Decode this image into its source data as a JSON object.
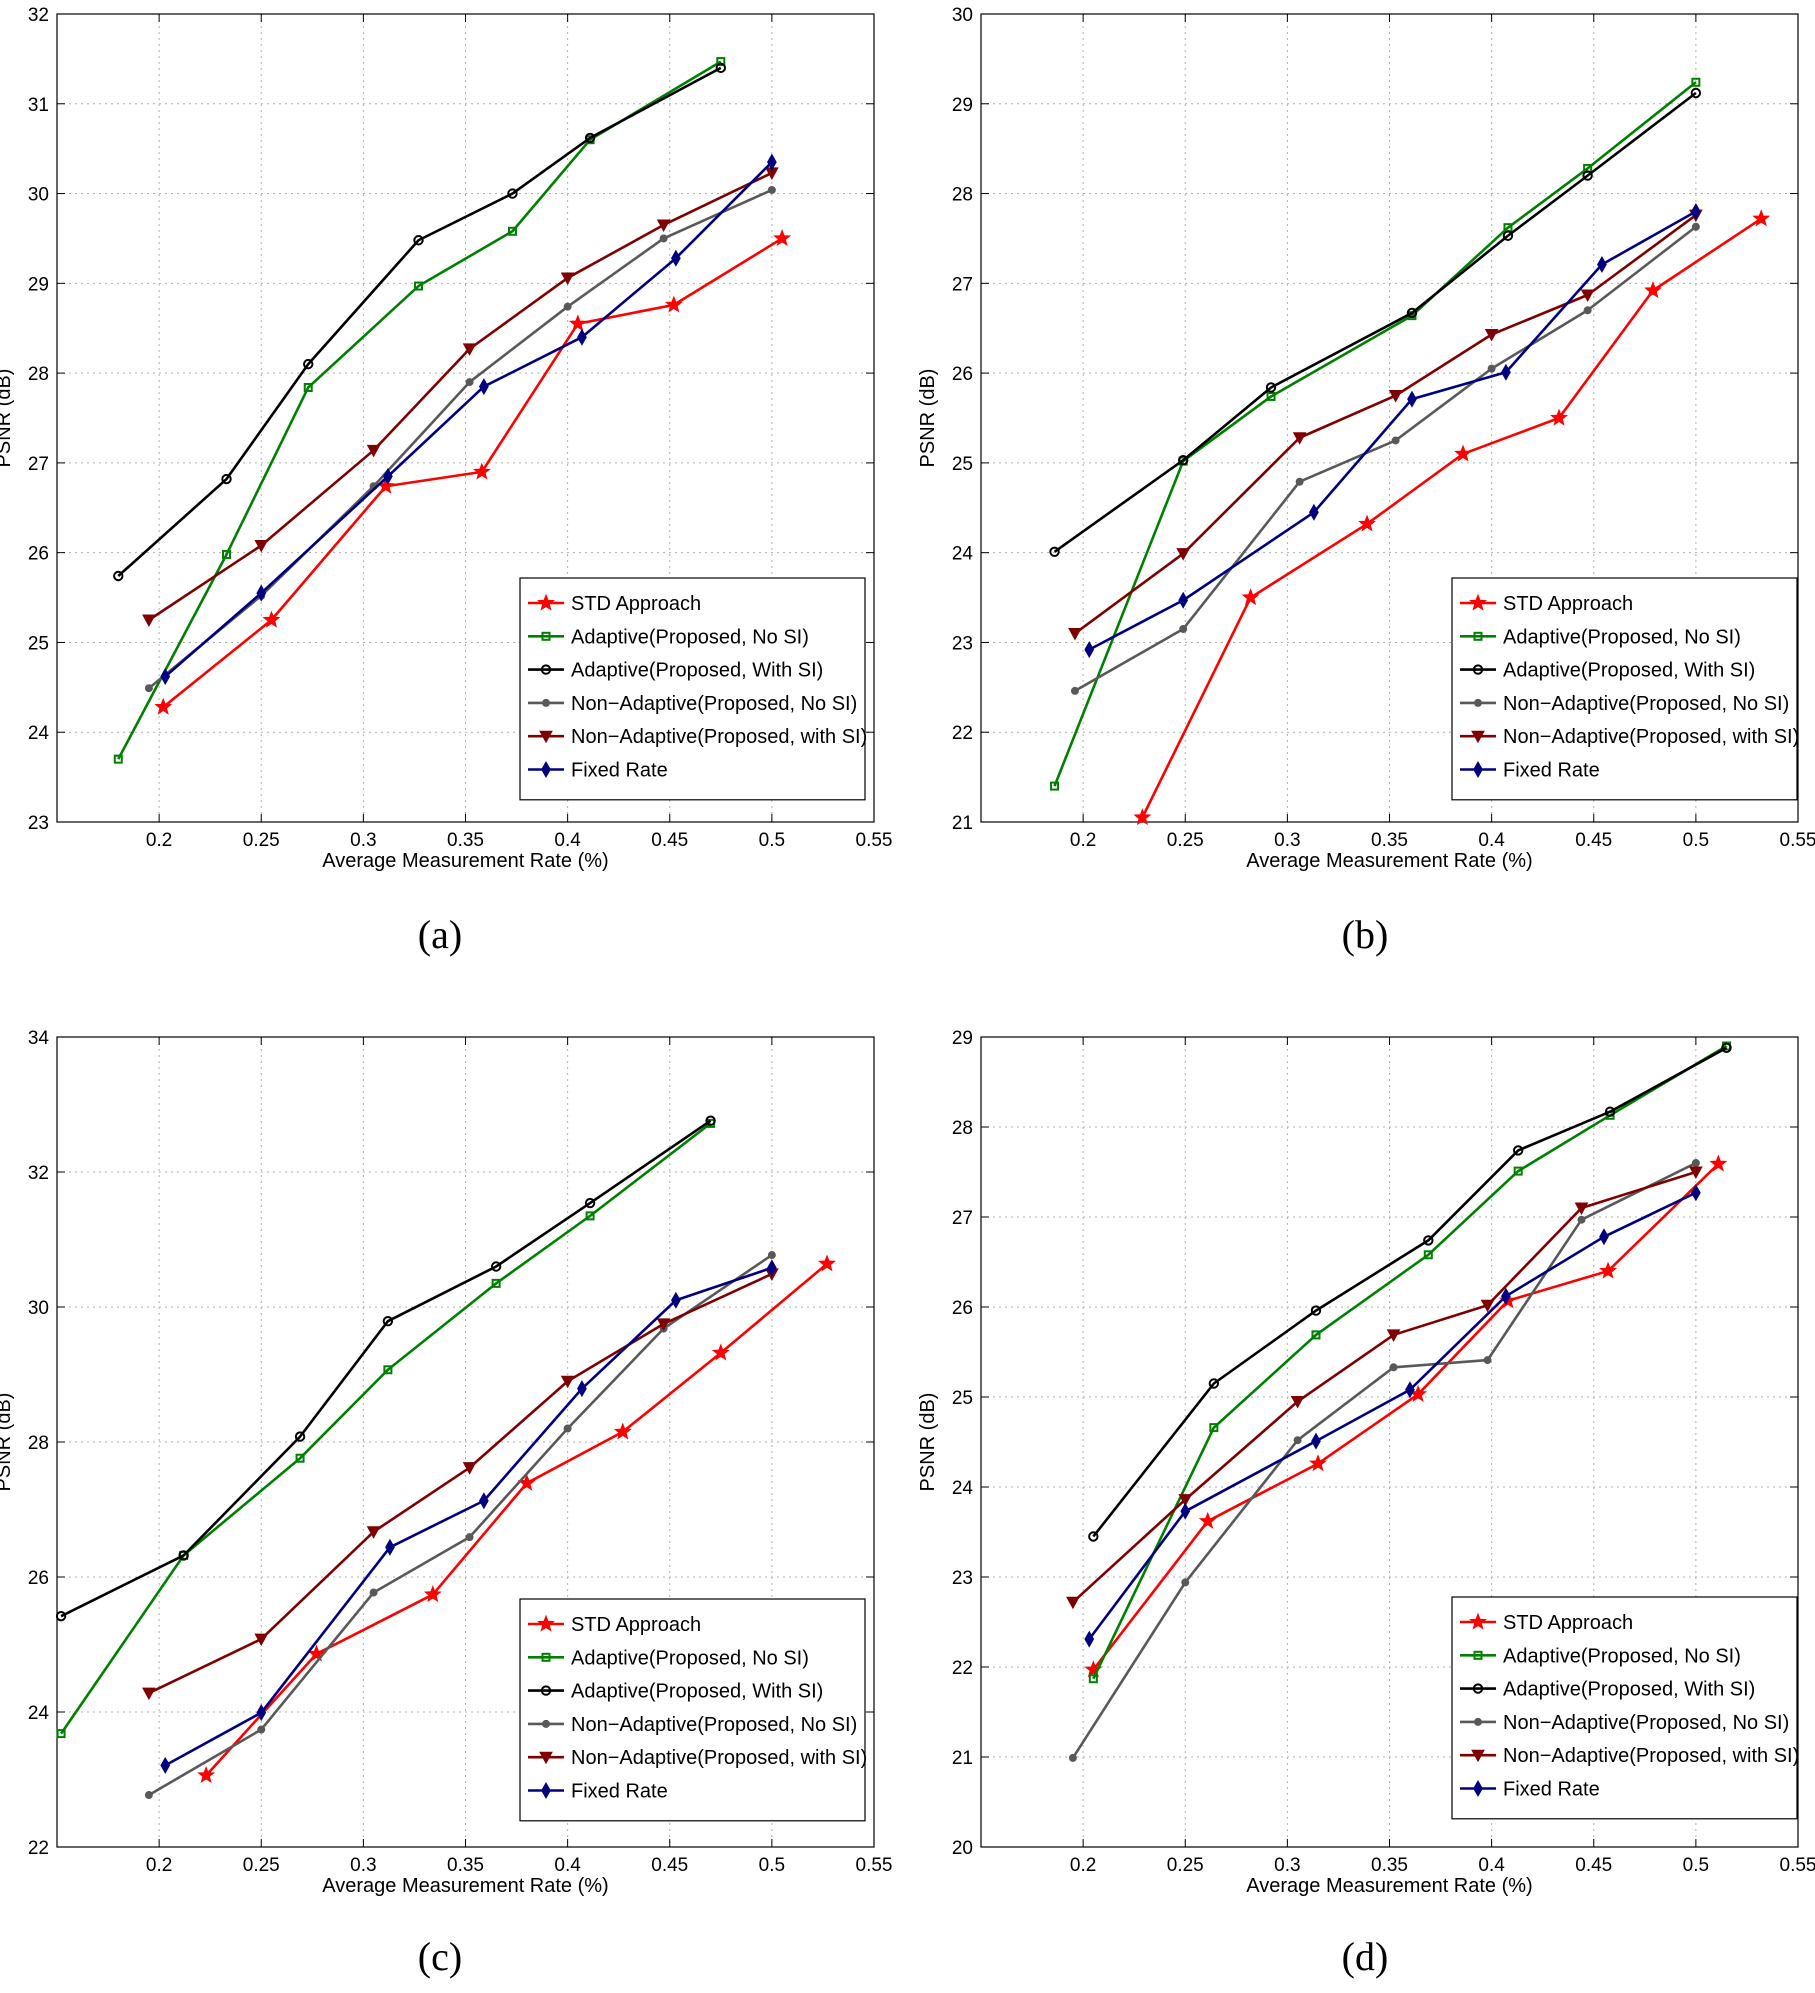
{
  "series_styles": {
    "std": {
      "color": "#ff0000",
      "marker": "star"
    },
    "anosi": {
      "color": "#008000",
      "marker": "square"
    },
    "asi": {
      "color": "#000000",
      "marker": "circle"
    },
    "nnosi": {
      "color": "#595959",
      "marker": "dot"
    },
    "nsi": {
      "color": "#7f0000",
      "marker": "triangle"
    },
    "fixed": {
      "color": "#000080",
      "marker": "diamond"
    }
  },
  "chart_data": [
    {
      "type": "line",
      "panel_label": "(a)",
      "xlabel": "Average Measurement Rate (%)",
      "ylabel": "PSNR (dB)",
      "xlim": [
        0.15,
        0.55
      ],
      "ylim": [
        23,
        32
      ],
      "xticks": [
        "0.2",
        "0.25",
        "0.3",
        "0.35",
        "0.4",
        "0.45",
        "0.5",
        "0.55"
      ],
      "yticks": [
        "23",
        "24",
        "25",
        "26",
        "27",
        "28",
        "29",
        "30",
        "31",
        "32"
      ],
      "grid": true,
      "legend_position": "lower-right",
      "series": [
        {
          "key": "std",
          "name": "STD Approach",
          "x": [
            0.202,
            0.255,
            0.311,
            0.358,
            0.405,
            0.452,
            0.505
          ],
          "y": [
            24.28,
            25.25,
            26.74,
            26.9,
            28.55,
            28.76,
            29.5
          ]
        },
        {
          "key": "anosi",
          "name": "Adaptive(Proposed, No SI)",
          "x": [
            0.18,
            0.233,
            0.273,
            0.327,
            0.373,
            0.411,
            0.475
          ],
          "y": [
            23.7,
            25.98,
            27.84,
            28.97,
            29.58,
            30.6,
            31.47
          ]
        },
        {
          "key": "asi",
          "name": "Adaptive(Proposed, With SI)",
          "x": [
            0.18,
            0.233,
            0.273,
            0.327,
            0.373,
            0.411,
            0.475
          ],
          "y": [
            25.74,
            26.82,
            28.1,
            29.48,
            30.0,
            30.62,
            31.4
          ]
        },
        {
          "key": "nnosi",
          "name": "Non−Adaptive(Proposed, No SI)",
          "x": [
            0.195,
            0.25,
            0.305,
            0.352,
            0.4,
            0.447,
            0.5
          ],
          "y": [
            24.49,
            25.52,
            26.74,
            27.9,
            28.74,
            29.5,
            30.04
          ]
        },
        {
          "key": "nsi",
          "name": "Non−Adaptive(Proposed, with SI)",
          "x": [
            0.195,
            0.25,
            0.305,
            0.352,
            0.4,
            0.447,
            0.5
          ],
          "y": [
            25.25,
            26.08,
            27.14,
            28.27,
            29.06,
            29.65,
            30.23
          ]
        },
        {
          "key": "fixed",
          "name": "Fixed Rate",
          "x": [
            0.203,
            0.25,
            0.312,
            0.359,
            0.407,
            0.453,
            0.5
          ],
          "y": [
            24.62,
            25.55,
            26.85,
            27.85,
            28.4,
            29.28,
            30.35
          ]
        }
      ]
    },
    {
      "type": "line",
      "panel_label": "(b)",
      "xlabel": "Average Measurement Rate (%)",
      "ylabel": "PSNR (dB)",
      "xlim": [
        0.15,
        0.55
      ],
      "ylim": [
        21,
        30
      ],
      "xticks": [
        "0.2",
        "0.25",
        "0.3",
        "0.35",
        "0.4",
        "0.45",
        "0.5",
        "0.55"
      ],
      "yticks": [
        "21",
        "22",
        "23",
        "24",
        "25",
        "26",
        "27",
        "28",
        "29",
        "30"
      ],
      "grid": true,
      "legend_position": "lower-right",
      "series": [
        {
          "key": "std",
          "name": "STD Approach",
          "x": [
            0.229,
            0.282,
            0.339,
            0.386,
            0.433,
            0.479,
            0.532
          ],
          "y": [
            21.05,
            23.5,
            24.32,
            25.1,
            25.5,
            26.92,
            27.72
          ]
        },
        {
          "key": "anosi",
          "name": "Adaptive(Proposed, No SI)",
          "x": [
            0.186,
            0.249,
            0.292,
            0.361,
            0.408,
            0.447,
            0.5
          ],
          "y": [
            21.4,
            25.02,
            25.74,
            26.64,
            27.62,
            28.28,
            29.24
          ]
        },
        {
          "key": "asi",
          "name": "Adaptive(Proposed, With SI)",
          "x": [
            0.186,
            0.249,
            0.292,
            0.361,
            0.408,
            0.447,
            0.5
          ],
          "y": [
            24.01,
            25.03,
            25.84,
            26.67,
            27.53,
            28.2,
            29.12
          ]
        },
        {
          "key": "nnosi",
          "name": "Non−Adaptive(Proposed, No SI)",
          "x": [
            0.196,
            0.249,
            0.306,
            0.353,
            0.4,
            0.447,
            0.5
          ],
          "y": [
            22.46,
            23.15,
            24.79,
            25.25,
            26.05,
            26.7,
            27.63
          ]
        },
        {
          "key": "nsi",
          "name": "Non−Adaptive(Proposed, with SI)",
          "x": [
            0.196,
            0.249,
            0.306,
            0.353,
            0.4,
            0.447,
            0.5
          ],
          "y": [
            23.1,
            23.99,
            25.28,
            25.75,
            26.43,
            26.87,
            27.76
          ]
        },
        {
          "key": "fixed",
          "name": "Fixed Rate",
          "x": [
            0.203,
            0.249,
            0.313,
            0.361,
            0.407,
            0.454,
            0.5
          ],
          "y": [
            22.92,
            23.47,
            24.45,
            25.71,
            26.01,
            27.21,
            27.8
          ]
        }
      ]
    },
    {
      "type": "line",
      "panel_label": "(c)",
      "xlabel": "Average Measurement Rate (%)",
      "ylabel": "PSNR (dB)",
      "xlim": [
        0.15,
        0.55
      ],
      "ylim": [
        22,
        34
      ],
      "xticks": [
        "0.2",
        "0.25",
        "0.3",
        "0.35",
        "0.4",
        "0.45",
        "0.5",
        "0.55"
      ],
      "yticks": [
        "22",
        "24",
        "26",
        "28",
        "30",
        "32",
        "34"
      ],
      "grid": true,
      "legend_position": "lower-right",
      "series": [
        {
          "key": "std",
          "name": "STD Approach",
          "x": [
            0.223,
            0.277,
            0.334,
            0.38,
            0.427,
            0.475,
            0.527
          ],
          "y": [
            23.06,
            24.86,
            25.74,
            27.39,
            28.15,
            29.32,
            30.64
          ]
        },
        {
          "key": "anosi",
          "name": "Adaptive(Proposed, No SI)",
          "x": [
            0.152,
            0.212,
            0.269,
            0.312,
            0.365,
            0.411,
            0.47
          ],
          "y": [
            23.68,
            26.32,
            27.76,
            29.07,
            30.35,
            31.35,
            32.72
          ]
        },
        {
          "key": "asi",
          "name": "Adaptive(Proposed, With SI)",
          "x": [
            0.152,
            0.212,
            0.269,
            0.312,
            0.365,
            0.411,
            0.47
          ],
          "y": [
            25.42,
            26.32,
            28.08,
            29.79,
            30.6,
            31.54,
            32.76
          ]
        },
        {
          "key": "nnosi",
          "name": "Non−Adaptive(Proposed, No SI)",
          "x": [
            0.195,
            0.25,
            0.305,
            0.352,
            0.4,
            0.447,
            0.5
          ],
          "y": [
            22.77,
            23.74,
            25.77,
            26.59,
            28.2,
            29.68,
            30.77
          ]
        },
        {
          "key": "nsi",
          "name": "Non−Adaptive(Proposed, with SI)",
          "x": [
            0.195,
            0.25,
            0.305,
            0.352,
            0.4,
            0.447,
            0.5
          ],
          "y": [
            24.28,
            25.08,
            26.67,
            27.62,
            28.9,
            29.75,
            30.49
          ]
        },
        {
          "key": "fixed",
          "name": "Fixed Rate",
          "x": [
            0.203,
            0.25,
            0.313,
            0.359,
            0.407,
            0.453,
            0.5
          ],
          "y": [
            23.21,
            23.99,
            26.44,
            27.13,
            28.79,
            30.1,
            30.58
          ]
        }
      ]
    },
    {
      "type": "line",
      "panel_label": "(d)",
      "xlabel": "Average Measurement Rate (%)",
      "ylabel": "PSNR (dB)",
      "xlim": [
        0.15,
        0.55
      ],
      "ylim": [
        20,
        29
      ],
      "xticks": [
        "0.2",
        "0.25",
        "0.3",
        "0.35",
        "0.4",
        "0.45",
        "0.5",
        "0.55"
      ],
      "yticks": [
        "20",
        "21",
        "22",
        "23",
        "24",
        "25",
        "26",
        "27",
        "28",
        "29"
      ],
      "grid": true,
      "legend_position": "lower-right",
      "series": [
        {
          "key": "std",
          "name": "STD Approach",
          "x": [
            0.205,
            0.261,
            0.315,
            0.364,
            0.408,
            0.457,
            0.511
          ],
          "y": [
            21.97,
            23.62,
            24.26,
            25.03,
            26.07,
            26.4,
            27.59
          ]
        },
        {
          "key": "anosi",
          "name": "Adaptive(Proposed, No SI)",
          "x": [
            0.205,
            0.264,
            0.314,
            0.369,
            0.413,
            0.458,
            0.515
          ],
          "y": [
            21.87,
            24.66,
            25.69,
            26.58,
            27.51,
            28.13,
            28.9
          ]
        },
        {
          "key": "asi",
          "name": "Adaptive(Proposed, With SI)",
          "x": [
            0.205,
            0.264,
            0.314,
            0.369,
            0.413,
            0.458,
            0.515
          ],
          "y": [
            23.45,
            25.15,
            25.96,
            26.74,
            27.74,
            28.17,
            28.88
          ]
        },
        {
          "key": "nnosi",
          "name": "Non−Adaptive(Proposed, No SI)",
          "x": [
            0.195,
            0.25,
            0.305,
            0.352,
            0.398,
            0.444,
            0.5
          ],
          "y": [
            20.99,
            22.94,
            24.52,
            25.33,
            25.41,
            26.97,
            27.6
          ]
        },
        {
          "key": "nsi",
          "name": "Non−Adaptive(Proposed, with SI)",
          "x": [
            0.195,
            0.25,
            0.305,
            0.352,
            0.398,
            0.444,
            0.5
          ],
          "y": [
            22.72,
            23.86,
            24.95,
            25.69,
            26.02,
            27.1,
            27.5
          ]
        },
        {
          "key": "fixed",
          "name": "Fixed Rate",
          "x": [
            0.203,
            0.25,
            0.314,
            0.36,
            0.407,
            0.455,
            0.5
          ],
          "y": [
            22.31,
            23.73,
            24.51,
            25.08,
            26.12,
            26.78,
            27.27
          ]
        }
      ]
    }
  ]
}
